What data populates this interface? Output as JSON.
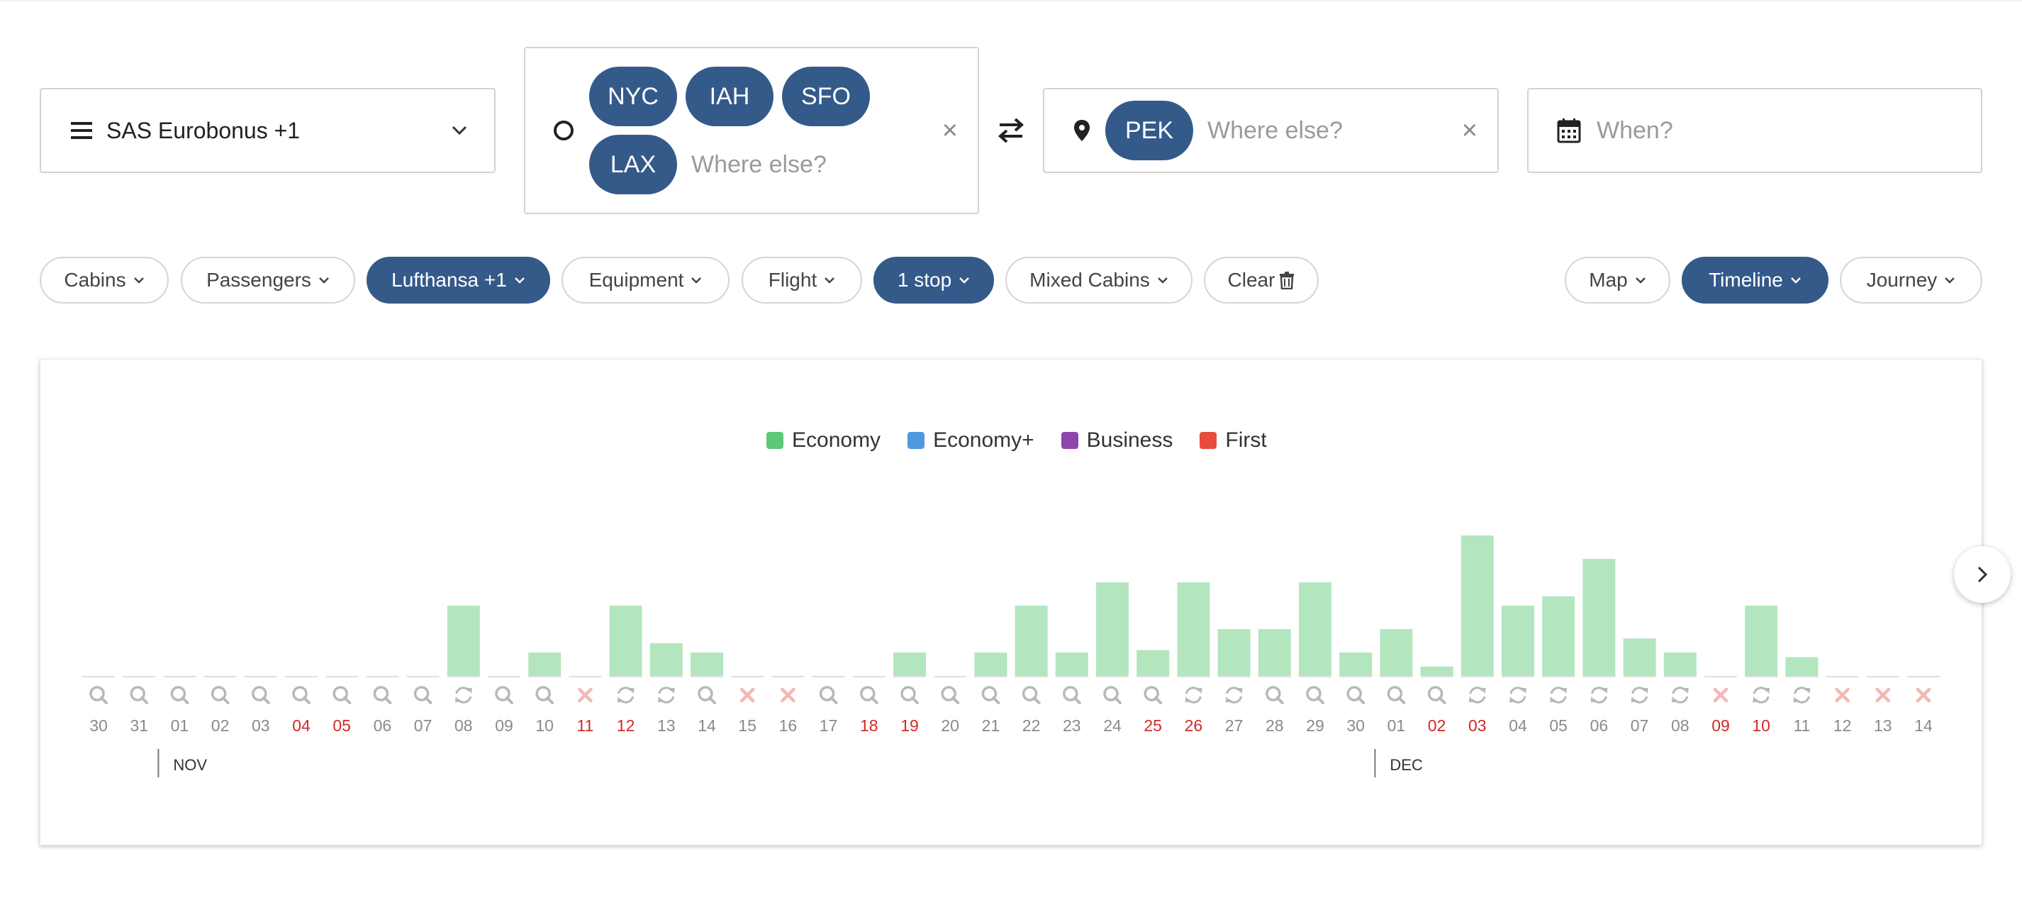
{
  "search": {
    "program_label": "SAS Eurobonus +1",
    "origins": [
      "NYC",
      "IAH",
      "SFO",
      "LAX"
    ],
    "origin_placeholder": "Where else?",
    "destinations": [
      "PEK"
    ],
    "destination_placeholder": "Where else?",
    "when_placeholder": "When?"
  },
  "filters": {
    "left": [
      {
        "label": "Cabins",
        "active": false
      },
      {
        "label": "Passengers",
        "active": false
      },
      {
        "label": "Lufthansa +1",
        "active": true
      },
      {
        "label": "Equipment",
        "active": false
      },
      {
        "label": "Flight",
        "active": false
      },
      {
        "label": "1 stop",
        "active": true
      },
      {
        "label": "Mixed Cabins",
        "active": false
      }
    ],
    "clear_label": "Clear",
    "views": [
      {
        "label": "Map",
        "active": false
      },
      {
        "label": "Timeline",
        "active": true
      },
      {
        "label": "Journey",
        "active": false
      }
    ]
  },
  "colors": {
    "brand": "#345a8a",
    "economy": "#5cc878",
    "economy_plus": "#4f98e0",
    "business": "#8e44ad",
    "first": "#e74c3c",
    "bar": "#b3e6bf",
    "weekend": "#cf2a27"
  },
  "chart_data": {
    "type": "bar",
    "legend": [
      {
        "name": "Economy",
        "color": "#5cc878"
      },
      {
        "name": "Economy+",
        "color": "#4f98e0"
      },
      {
        "name": "Business",
        "color": "#8e44ad"
      },
      {
        "name": "First",
        "color": "#e74c3c"
      }
    ],
    "series_name": "Economy",
    "categories": [
      "30",
      "31",
      "01",
      "02",
      "03",
      "04",
      "05",
      "06",
      "07",
      "08",
      "09",
      "10",
      "11",
      "12",
      "13",
      "14",
      "15",
      "16",
      "17",
      "18",
      "19",
      "20",
      "21",
      "22",
      "23",
      "24",
      "25",
      "26",
      "27",
      "28",
      "29",
      "30",
      "01",
      "02",
      "03",
      "04",
      "05",
      "06",
      "07",
      "08",
      "09",
      "10",
      "11",
      "12",
      "13",
      "14"
    ],
    "values": [
      0,
      0,
      0,
      0,
      0,
      0,
      0,
      0,
      0,
      3,
      0,
      1,
      0,
      3,
      1.4,
      1,
      0,
      0,
      0,
      0,
      1,
      0,
      1,
      3,
      1,
      4,
      1.1,
      4,
      2,
      2,
      4,
      1,
      2,
      0.4,
      6,
      3,
      3.4,
      5,
      1.6,
      1,
      0,
      3,
      0.8,
      0,
      0,
      0
    ],
    "status_icons": [
      "search",
      "search",
      "search",
      "search",
      "search",
      "search",
      "search",
      "search",
      "search",
      "refresh",
      "search",
      "search",
      "x",
      "refresh",
      "refresh",
      "search",
      "x",
      "x",
      "search",
      "search",
      "search",
      "search",
      "search",
      "search",
      "search",
      "search",
      "search",
      "refresh",
      "refresh",
      "search",
      "search",
      "search",
      "search",
      "search",
      "refresh",
      "refresh",
      "refresh",
      "refresh",
      "refresh",
      "refresh",
      "x",
      "refresh",
      "refresh",
      "x",
      "x",
      "x"
    ],
    "weekend_days": [
      5,
      6,
      12,
      13,
      19,
      20,
      26,
      27,
      33,
      34,
      40,
      41
    ],
    "month_labels": [
      {
        "label": "NOV",
        "index": 2
      },
      {
        "label": "DEC",
        "index": 32
      }
    ],
    "ylim": [
      0,
      6
    ]
  }
}
